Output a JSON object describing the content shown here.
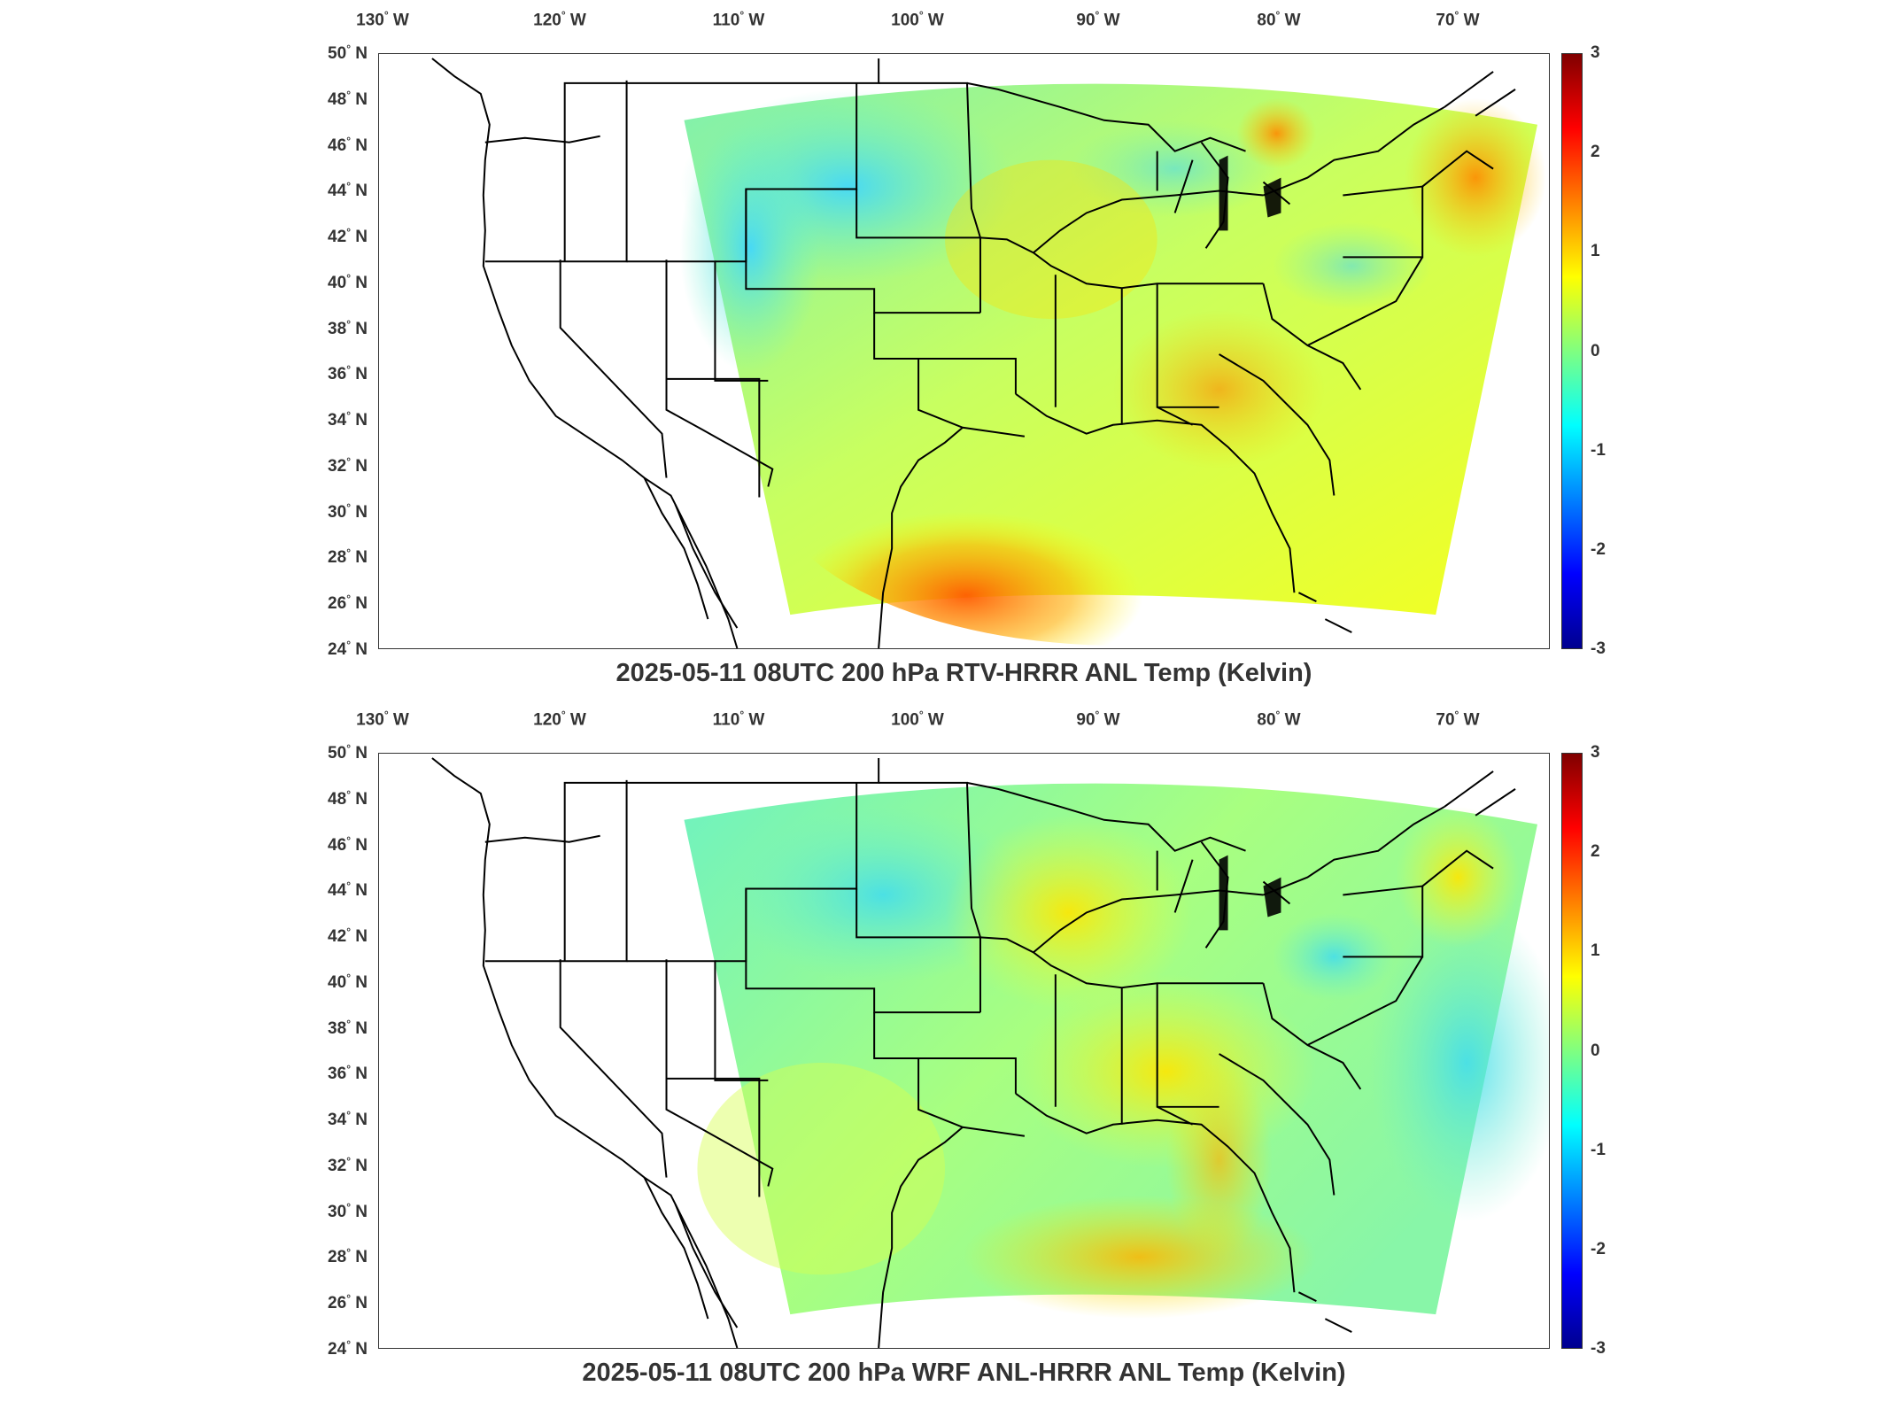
{
  "colors": {
    "frame": "#333333",
    "coast": "#000000",
    "colormap": [
      "#00008f",
      "#0000ff",
      "#0080ff",
      "#00ffff",
      "#80ff80",
      "#ffff00",
      "#ff8000",
      "#ff0000",
      "#800000"
    ]
  },
  "lon_labels": [
    {
      "deg": "130",
      "dir": "W"
    },
    {
      "deg": "120",
      "dir": "W"
    },
    {
      "deg": "110",
      "dir": "W"
    },
    {
      "deg": "100",
      "dir": "W"
    },
    {
      "deg": "90",
      "dir": "W"
    },
    {
      "deg": "80",
      "dir": "W"
    },
    {
      "deg": "70",
      "dir": "W"
    }
  ],
  "lat_labels": [
    {
      "deg": "50",
      "dir": "N"
    },
    {
      "deg": "48",
      "dir": "N"
    },
    {
      "deg": "46",
      "dir": "N"
    },
    {
      "deg": "44",
      "dir": "N"
    },
    {
      "deg": "42",
      "dir": "N"
    },
    {
      "deg": "40",
      "dir": "N"
    },
    {
      "deg": "38",
      "dir": "N"
    },
    {
      "deg": "36",
      "dir": "N"
    },
    {
      "deg": "34",
      "dir": "N"
    },
    {
      "deg": "32",
      "dir": "N"
    },
    {
      "deg": "30",
      "dir": "N"
    },
    {
      "deg": "28",
      "dir": "N"
    },
    {
      "deg": "26",
      "dir": "N"
    },
    {
      "deg": "24",
      "dir": "N"
    }
  ],
  "colorbar_ticks": [
    "3",
    "2",
    "1",
    "0",
    "-1",
    "-2",
    "-3"
  ],
  "panels": [
    {
      "title": "2025-05-11 08UTC 200 hPa RTV-HRRR ANL Temp (Kelvin)",
      "field": "RTV-HRRR"
    },
    {
      "title": "2025-05-11 08UTC 200 hPa WRF ANL-HRRR ANL Temp (Kelvin)",
      "field": "WRF"
    }
  ],
  "chart_data": [
    {
      "type": "heatmap",
      "title": "2025-05-11 08UTC 200 hPa RTV-HRRR ANL Temp (Kelvin)",
      "x_ticks": [
        "130° W",
        "120° W",
        "110° W",
        "100° W",
        "90° W",
        "80° W",
        "70° W"
      ],
      "y_ticks": [
        "50° N",
        "48° N",
        "46° N",
        "44° N",
        "42° N",
        "40° N",
        "38° N",
        "36° N",
        "34° N",
        "32° N",
        "30° N",
        "28° N",
        "26° N",
        "24° N"
      ],
      "xlim": [
        -131,
        -65
      ],
      "ylim": [
        24,
        50
      ],
      "colorbar_range": [
        -3,
        3
      ],
      "colorbar_ticks": [
        3,
        2,
        1,
        0,
        -1,
        -2,
        -3
      ]
    },
    {
      "type": "heatmap",
      "title": "2025-05-11 08UTC 200 hPa WRF ANL-HRRR ANL Temp (Kelvin)",
      "x_ticks": [
        "130° W",
        "120° W",
        "110° W",
        "100° W",
        "90° W",
        "80° W",
        "70° W"
      ],
      "y_ticks": [
        "50° N",
        "48° N",
        "46° N",
        "44° N",
        "42° N",
        "40° N",
        "38° N",
        "36° N",
        "34° N",
        "32° N",
        "30° N",
        "28° N",
        "26° N",
        "24° N"
      ],
      "xlim": [
        -131,
        -65
      ],
      "ylim": [
        24,
        50
      ],
      "colorbar_range": [
        -3,
        3
      ],
      "colorbar_ticks": [
        3,
        2,
        1,
        0,
        -1,
        -2,
        -3
      ]
    }
  ]
}
